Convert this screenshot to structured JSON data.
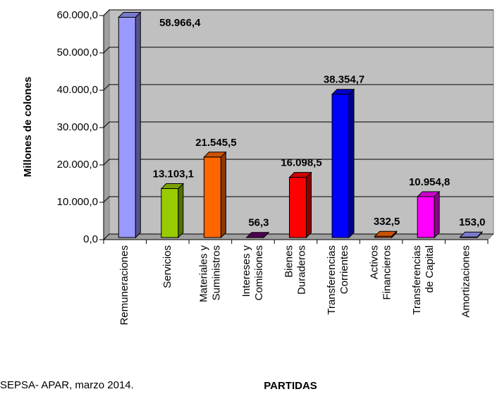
{
  "chart_data": {
    "type": "bar3d",
    "y_axis_label": "Millones de colones",
    "x_axis_label": "PARTIDAS",
    "source": "SEPSA- APAR, marzo 2014.",
    "categories": [
      [
        "Remuneraciones"
      ],
      [
        "Servicios"
      ],
      [
        "Materiales y",
        "Suministros"
      ],
      [
        "Intereses y",
        "Comisiones"
      ],
      [
        "Bienes",
        "Duraderos"
      ],
      [
        "Transferencias",
        "Corrientes"
      ],
      [
        "Activos",
        "Financieros"
      ],
      [
        "Transferencias",
        "de Capital"
      ],
      [
        "Amortizaciones"
      ]
    ],
    "values": [
      58966.4,
      13103.1,
      21545.5,
      56.3,
      16098.5,
      38354.7,
      332.5,
      10954.8,
      153.0
    ],
    "value_labels": [
      "58.966,4",
      "13.103,1",
      "21.545,5",
      "56,3",
      "16.098,5",
      "38.354,7",
      "332,5",
      "10.954,8",
      "153,0"
    ],
    "colors": [
      "#9999ff",
      "#99cc00",
      "#ff6600",
      "#660066",
      "#ff0000",
      "#0000ff",
      "#ff6600",
      "#ff00ff",
      "#9999ff"
    ],
    "ylim": [
      0,
      60000
    ],
    "yticks": [
      {
        "value": 0,
        "label": "0,0"
      },
      {
        "value": 10000,
        "label": "10.000,0"
      },
      {
        "value": 20000,
        "label": "20.000,0"
      },
      {
        "value": 30000,
        "label": "30.000,0"
      },
      {
        "value": 40000,
        "label": "40.000,0"
      },
      {
        "value": 50000,
        "label": "50.000,0"
      },
      {
        "value": 60000,
        "label": "60.000,0"
      }
    ],
    "grid": true
  }
}
